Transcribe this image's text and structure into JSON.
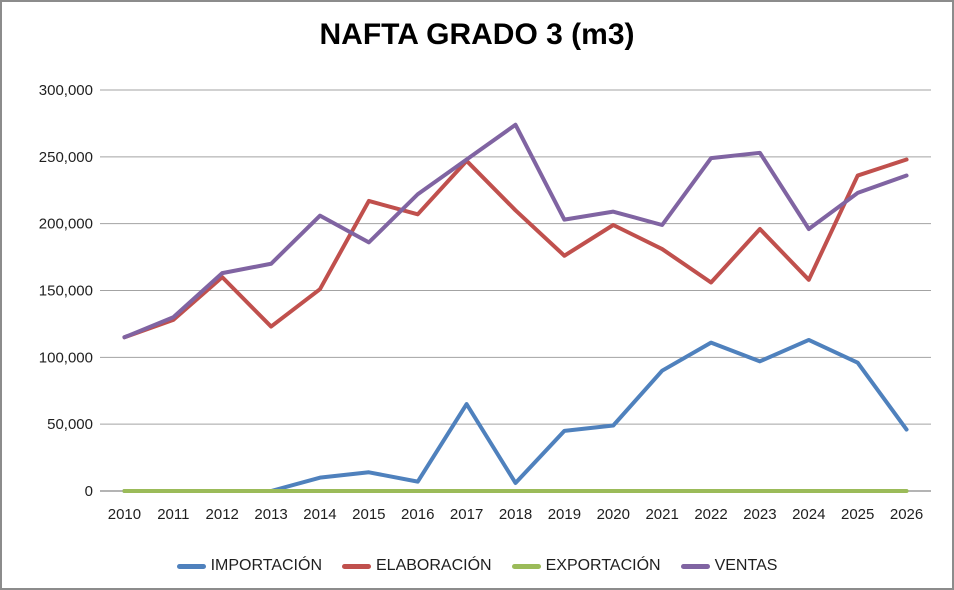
{
  "window": {
    "background": "#ffffff",
    "border_color": "#8c8c8c"
  },
  "colors": {
    "gridline": "#a3a3a3",
    "axis_line": "#868686",
    "text": "#1f1f1f",
    "title_text": "#000000"
  },
  "chart_data": {
    "type": "line",
    "title": "NAFTA GRADO 3 (m3)",
    "xlabel": "",
    "ylabel": "",
    "grid": true,
    "legend_position": "bottom",
    "ylim": [
      0,
      300000
    ],
    "categories": [
      "2010",
      "2011",
      "2012",
      "2013",
      "2014",
      "2015",
      "2016",
      "2017",
      "2018",
      "2019",
      "2020",
      "2021",
      "2022",
      "2023",
      "2024",
      "2025",
      "2026"
    ],
    "y_axis": {
      "min": 0,
      "max": 300000,
      "tick_step": 50000,
      "tick_labels": [
        "0",
        "50,000",
        "100,000",
        "150,000",
        "200,000",
        "250,000",
        "300,000"
      ]
    },
    "series": [
      {
        "name": "IMPORTACIÓN",
        "color": "#4F81BD",
        "values": [
          0,
          0,
          0,
          0,
          10000,
          14000,
          7000,
          65000,
          6000,
          45000,
          49000,
          90000,
          111000,
          97000,
          113000,
          96000,
          46000
        ]
      },
      {
        "name": "ELABORACIÓN",
        "color": "#C0504D",
        "values": [
          115000,
          128000,
          160000,
          123000,
          151000,
          217000,
          207000,
          247000,
          210000,
          176000,
          199000,
          181000,
          156000,
          196000,
          158000,
          236000,
          248000
        ]
      },
      {
        "name": "EXPORTACIÓN",
        "color": "#9BBB59",
        "values": [
          0,
          0,
          0,
          0,
          0,
          0,
          0,
          0,
          0,
          0,
          0,
          0,
          0,
          0,
          0,
          0,
          0
        ]
      },
      {
        "name": "VENTAS",
        "color": "#8064A2",
        "values": [
          115000,
          130000,
          163000,
          170000,
          206000,
          186000,
          222000,
          248000,
          274000,
          203000,
          209000,
          199000,
          249000,
          253000,
          196000,
          223000,
          236000
        ]
      }
    ]
  }
}
